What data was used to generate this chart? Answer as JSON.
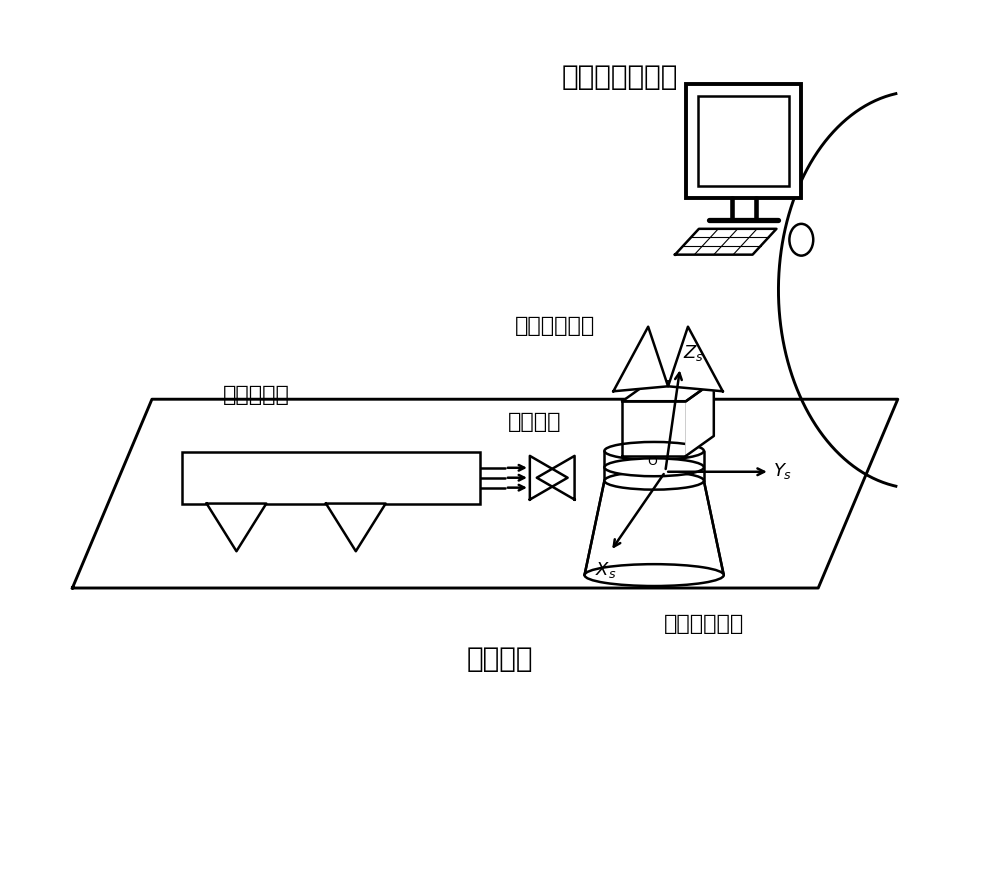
{
  "bg_color": "#ffffff",
  "line_color": "#000000",
  "title_computer": "数据处理计算机",
  "title_simulator": "单星模拟器",
  "title_fixture": "可旋转的工装",
  "title_sensor": "星敏感器",
  "title_turntable": "一维单轴转台",
  "title_platform": "气垫平台",
  "font_size_main": 20,
  "font_size_label": 16,
  "font_size_axis": 13,
  "fig_width": 10.0,
  "fig_height": 8.7
}
